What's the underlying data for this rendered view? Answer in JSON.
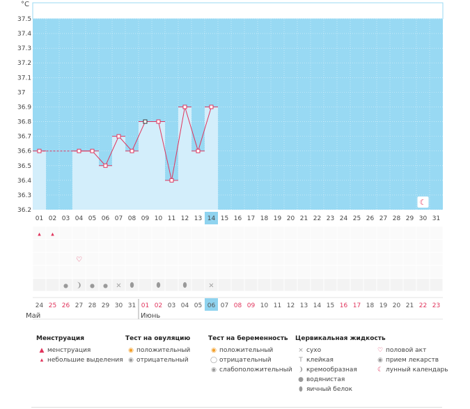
{
  "chart_data": {
    "type": "bar",
    "ylabel": "°C",
    "ylim": [
      36.2,
      37.6
    ],
    "yticks": [
      "37.5",
      "37.4",
      "37.3",
      "37.2",
      "37.1",
      "37",
      "36.9",
      "36.8",
      "36.7",
      "36.6",
      "36.5",
      "36.4",
      "36.3",
      "36.2"
    ],
    "cycle_days": [
      "01",
      "02",
      "03",
      "04",
      "05",
      "06",
      "07",
      "08",
      "09",
      "10",
      "11",
      "12",
      "13",
      "14",
      "15",
      "16",
      "17",
      "18",
      "19",
      "20",
      "21",
      "22",
      "23",
      "24",
      "25",
      "26",
      "27",
      "28",
      "29",
      "30",
      "31"
    ],
    "temperatures": [
      36.6,
      null,
      null,
      36.6,
      36.6,
      36.5,
      36.7,
      36.6,
      36.8,
      36.8,
      36.4,
      36.9,
      36.6,
      36.9,
      null,
      null,
      null,
      null,
      null,
      null,
      null,
      null,
      null,
      null,
      null,
      null,
      null,
      null,
      null,
      null,
      null
    ],
    "highlight_day_index": 13,
    "moon_day_index": 29,
    "moon_symbol": "☾",
    "dates": [
      "24",
      "25",
      "26",
      "27",
      "28",
      "29",
      "30",
      "31",
      "01",
      "02",
      "03",
      "04",
      "05",
      "06",
      "07",
      "08",
      "09",
      "10",
      "11",
      "12",
      "13",
      "14",
      "15",
      "16",
      "17",
      "18",
      "19",
      "20",
      "21",
      "22",
      "23"
    ],
    "date_colors": [
      "#555",
      "#e0345c",
      "#e0345c",
      "#555",
      "#555",
      "#555",
      "#555",
      "#555",
      "#e0345c",
      "#e0345c",
      "#555",
      "#555",
      "#555",
      "#555",
      "#555",
      "#e0345c",
      "#e0345c",
      "#555",
      "#555",
      "#555",
      "#555",
      "#555",
      "#555",
      "#e0345c",
      "#e0345c",
      "#555",
      "#555",
      "#555",
      "#555",
      "#e0345c",
      "#e0345c"
    ],
    "months": [
      {
        "label": "Май",
        "start_index": 0
      },
      {
        "label": "Июнь",
        "start_index": 8
      }
    ],
    "symptom_rows": [
      {
        "name": "menstruation",
        "marks": [
          {
            "day": 0,
            "icon": "drop-small-icon"
          },
          {
            "day": 1,
            "icon": "drop-small-icon"
          }
        ]
      },
      {
        "name": "empty",
        "marks": []
      },
      {
        "name": "intercourse",
        "marks": [
          {
            "day": 3,
            "icon": "heart-icon"
          }
        ]
      },
      {
        "name": "empty2",
        "marks": []
      },
      {
        "name": "cervical-fluid",
        "marks": [
          {
            "day": 2,
            "icon": "water-drop-icon"
          },
          {
            "day": 3,
            "icon": "creamy-icon"
          },
          {
            "day": 4,
            "icon": "water-drop-icon"
          },
          {
            "day": 5,
            "icon": "water-drop-icon"
          },
          {
            "day": 6,
            "icon": "dry-icon"
          },
          {
            "day": 7,
            "icon": "egg-white-icon"
          },
          {
            "day": 9,
            "icon": "egg-white-icon"
          },
          {
            "day": 11,
            "icon": "egg-white-icon"
          },
          {
            "day": 13,
            "icon": "dry-icon"
          }
        ]
      }
    ]
  },
  "icons": {
    "drop": "▲",
    "drop_small": "▴",
    "heart": "♡",
    "dry": "×",
    "sticky": "T",
    "creamy": "❩",
    "watery": "●",
    "egg_white": "⬮",
    "circle": "◉",
    "moon": "☾"
  },
  "legend": {
    "menstruation": {
      "title": "Менструация",
      "items": [
        {
          "icon": "▲",
          "label": "менструация"
        },
        {
          "icon": "▴",
          "label": "небольшие выделения"
        }
      ]
    },
    "ovulation": {
      "title": "Тест на овуляцию",
      "items": [
        {
          "icon": "◉",
          "label": "положительный"
        },
        {
          "icon": "◉",
          "label": "отрицательный"
        }
      ]
    },
    "pregnancy": {
      "title": "Тест на беременность",
      "items": [
        {
          "icon": "◉",
          "label": "положительный"
        },
        {
          "icon": "◯",
          "label": "отрицательный"
        },
        {
          "icon": "◉",
          "label": "слабоположительный"
        }
      ]
    },
    "cervical": {
      "title": "Цервикальная жидкость",
      "items": [
        {
          "icon": "×",
          "label": "сухо"
        },
        {
          "icon": "T",
          "label": "клейкая"
        },
        {
          "icon": "❩",
          "label": "кремообразная"
        },
        {
          "icon": "●",
          "label": "водянистая"
        },
        {
          "icon": "⬮",
          "label": "яичный белок"
        }
      ]
    },
    "other": {
      "items": [
        {
          "icon": "♡",
          "label": "половой акт"
        },
        {
          "icon": "◉",
          "label": "прием лекарств"
        },
        {
          "icon": "☾",
          "label": "лунный календарь"
        }
      ]
    }
  },
  "colors": {
    "plot_bg": "#98d9f3",
    "bar_fill": "#d3eefb",
    "line": "#e0345c",
    "highlight": "#8fd3ef",
    "grid_light": "#eeeeee"
  }
}
